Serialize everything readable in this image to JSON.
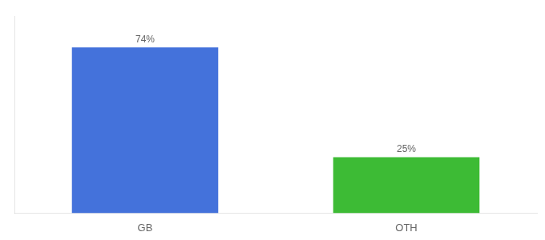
{
  "chart_data": {
    "type": "bar",
    "categories": [
      "GB",
      "OTH"
    ],
    "values": [
      74,
      25
    ],
    "value_labels": [
      "74%",
      "25%"
    ],
    "colors": [
      "#4472db",
      "#3dbb35"
    ],
    "ylim": [
      0,
      88
    ],
    "grid": false,
    "tick_labels": "x",
    "data_labels": true
  }
}
